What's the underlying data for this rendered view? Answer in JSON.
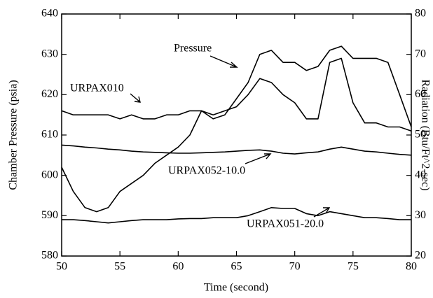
{
  "chart_data": {
    "type": "line",
    "x_label": "Time (second)",
    "y_label": "Chamber Pressure (psia)",
    "y2_label": "Radiation (Btu/Ft^2-sec)",
    "x": [
      50,
      51,
      52,
      53,
      54,
      55,
      56,
      57,
      58,
      59,
      60,
      61,
      62,
      63,
      64,
      65,
      66,
      67,
      68,
      69,
      70,
      71,
      72,
      73,
      74,
      75,
      76,
      77,
      78,
      79,
      80
    ],
    "series": [
      {
        "name": "Pressure",
        "color": "#000000",
        "axis": "y",
        "values": [
          602,
          596,
          592,
          591,
          592,
          596,
          598,
          600,
          603,
          605,
          607,
          610,
          616,
          614,
          615,
          619,
          623,
          630,
          631,
          628,
          628,
          626,
          627,
          631,
          632,
          629,
          629,
          629,
          628,
          620,
          612
        ]
      },
      {
        "name": "URPAX010",
        "color": "#000000",
        "axis": "y2",
        "values": [
          56,
          55,
          55,
          55,
          55,
          54,
          55,
          54,
          54,
          55,
          55,
          56,
          56,
          55,
          56,
          57,
          60,
          64,
          63,
          60,
          58,
          54,
          54,
          68,
          69,
          58,
          53,
          53,
          52,
          52,
          51
        ]
      },
      {
        "name": "URPAX052-10.0",
        "color": "#000000",
        "axis": "y2",
        "values": [
          47.5,
          47.3,
          47,
          46.8,
          46.5,
          46.3,
          46,
          45.8,
          45.7,
          45.6,
          45.5,
          45.5,
          45.6,
          45.7,
          45.8,
          46,
          46.2,
          46.3,
          46,
          45.5,
          45.3,
          45.6,
          45.8,
          46.5,
          47,
          46.5,
          46,
          45.8,
          45.5,
          45.2,
          45
        ]
      },
      {
        "name": "URPAX051-20.0",
        "color": "#000000",
        "axis": "y2",
        "values": [
          29,
          29,
          28.8,
          28.5,
          28.2,
          28.5,
          28.8,
          29,
          29,
          29,
          29.2,
          29.3,
          29.3,
          29.5,
          29.5,
          29.5,
          30,
          31,
          32,
          31.8,
          31.8,
          30.5,
          30,
          31,
          30.5,
          30,
          29.5,
          29.5,
          29.3,
          29,
          29
        ]
      }
    ],
    "xlim": [
      50,
      80
    ],
    "xticks": [
      50,
      55,
      60,
      65,
      70,
      75,
      80
    ],
    "ylim": [
      580,
      640
    ],
    "yticks": [
      580,
      590,
      600,
      610,
      620,
      630,
      640
    ],
    "y2lim": [
      20,
      80
    ],
    "y2ticks": [
      20,
      30,
      40,
      50,
      60,
      70,
      80
    ]
  }
}
